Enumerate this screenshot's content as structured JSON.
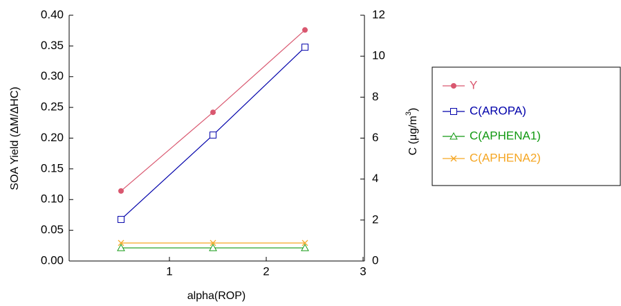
{
  "chart_data": {
    "type": "line",
    "x_label": "alpha(ROP)",
    "y_label": "SOA Yield (ΔM/ΔHC)",
    "y2_label": {
      "main": "C (μg/m",
      "sup": "3",
      "end": ")"
    },
    "x": [
      0.5,
      1.45,
      2.4
    ],
    "xlim": [
      0,
      3
    ],
    "xticks": [
      1,
      2,
      3
    ],
    "ylim": [
      0,
      0.4
    ],
    "yticks": [
      {
        "value": 0,
        "label": "0.00"
      },
      {
        "value": 0.05,
        "label": "0.05"
      },
      {
        "value": 0.1,
        "label": "0.10"
      },
      {
        "value": 0.15,
        "label": "0.15"
      },
      {
        "value": 0.2,
        "label": "0.20"
      },
      {
        "value": 0.25,
        "label": "0.25"
      },
      {
        "value": 0.3,
        "label": "0.30"
      },
      {
        "value": 0.35,
        "label": "0.35"
      },
      {
        "value": 0.4,
        "label": "0.40"
      }
    ],
    "y2lim": [
      0,
      12
    ],
    "y2ticks": [
      0,
      2,
      4,
      6,
      8,
      10,
      12
    ],
    "grid": false,
    "legend": "right",
    "series": [
      {
        "name": "Y",
        "color": "#d9576f",
        "marker": "circle",
        "values": [
          0.114,
          0.242,
          0.376
        ]
      },
      {
        "name": "C(AROPA)",
        "color": "#0000aa",
        "marker": "square",
        "axis": "y2",
        "values": [
          2.03,
          6.15,
          10.44
        ]
      },
      {
        "name": "C(APHENA1)",
        "color": "#119911",
        "marker": "triangle",
        "axis": "y2",
        "values": [
          0.64,
          0.64,
          0.64
        ]
      },
      {
        "name": "C(APHENA2)",
        "color": "#f5a623",
        "marker": "x",
        "axis": "y2",
        "values": [
          0.88,
          0.88,
          0.88
        ]
      }
    ]
  }
}
